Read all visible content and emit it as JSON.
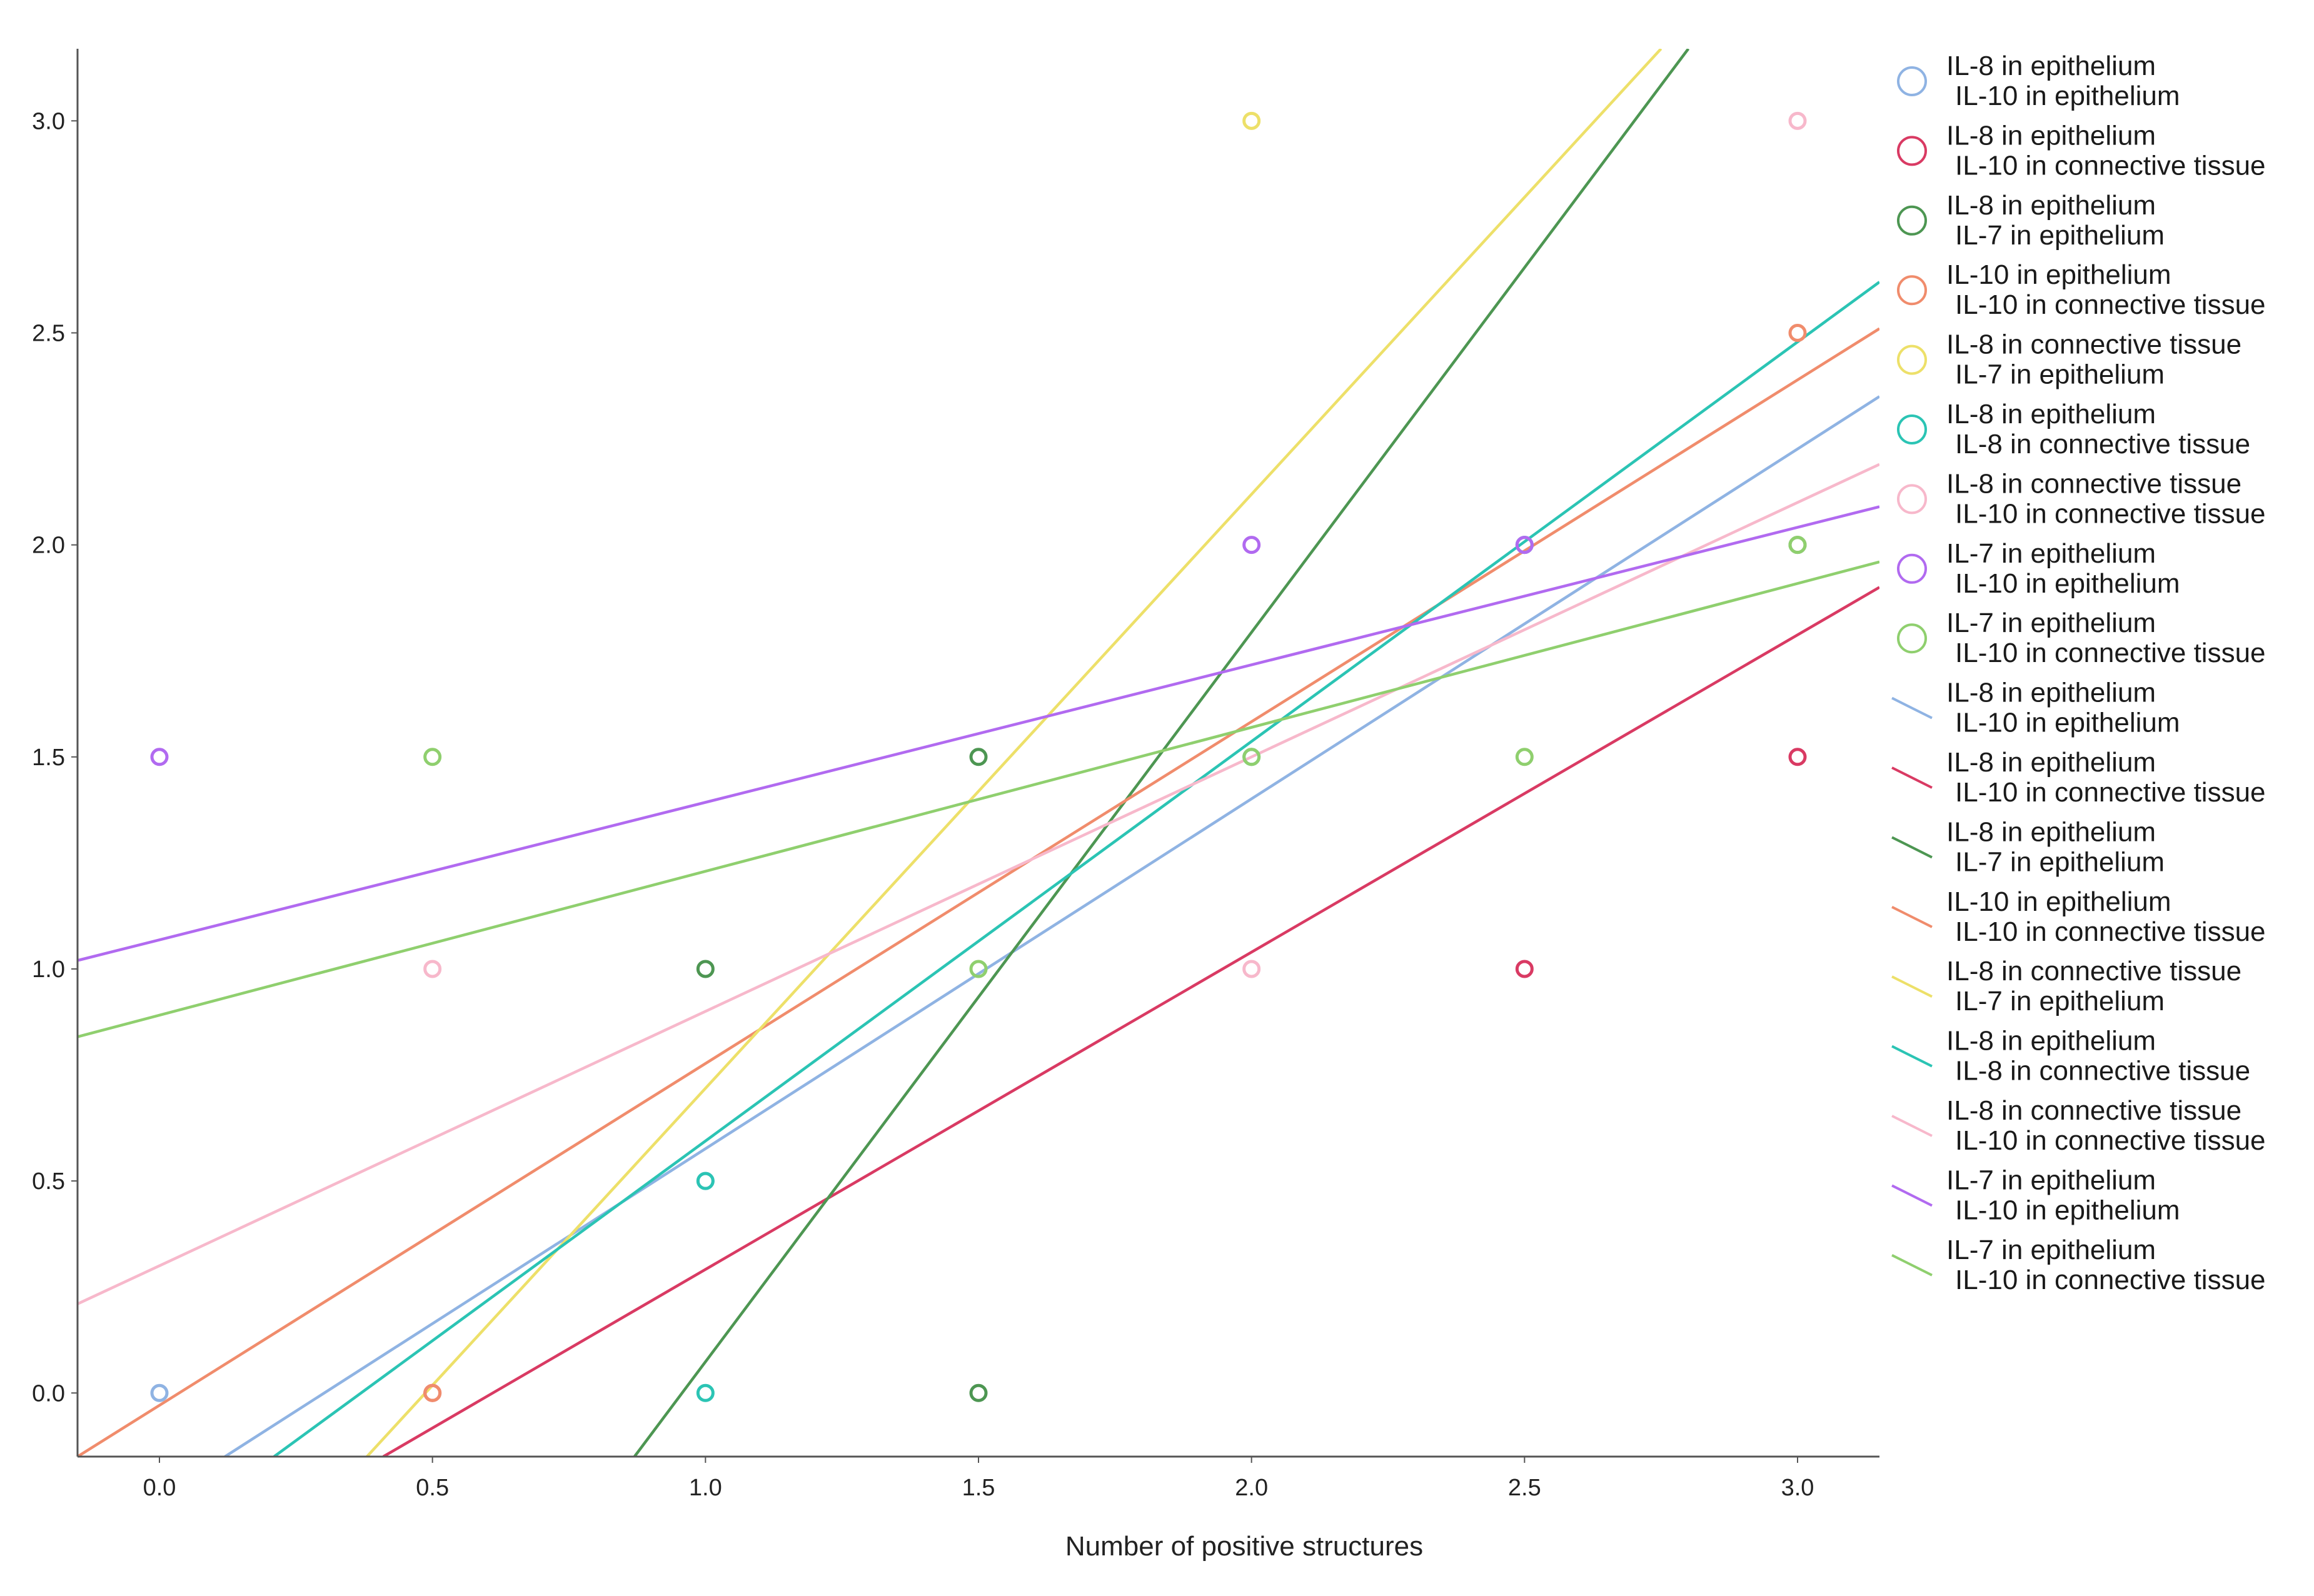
{
  "chart_data": {
    "type": "scatter",
    "title": "",
    "xlabel": "Number of positive structures",
    "ylabel": "",
    "xlim": [
      -0.15,
      3.15
    ],
    "ylim": [
      -0.15,
      3.17
    ],
    "x_ticks": [
      0.0,
      0.5,
      1.0,
      1.5,
      2.0,
      2.5,
      3.0
    ],
    "x_tick_labels": [
      "0.0",
      "0.5",
      "1.0",
      "1.5",
      "2.0",
      "2.5",
      "3.0"
    ],
    "y_ticks": [
      0.0,
      0.5,
      1.0,
      1.5,
      2.0,
      2.5,
      3.0
    ],
    "y_tick_labels": [
      "0.0",
      "0.5",
      "1.0",
      "1.5",
      "2.0",
      "2.5",
      "3.0"
    ],
    "grid": false,
    "legend_position": "right",
    "series": [
      {
        "name_line1": "IL-8 in epithelium",
        "name_line2": "IL-10 in epithelium",
        "color": "#8fb3e3",
        "points": [
          [
            0.0,
            0.0
          ],
          [
            1.0,
            0.5
          ],
          [
            2.5,
            2.0
          ]
        ],
        "fit_line": [
          [
            0.12,
            -0.15
          ],
          [
            3.15,
            2.35
          ]
        ]
      },
      {
        "name_line1": "IL-8 in epithelium",
        "name_line2": "IL-10 in connective tissue",
        "color": "#d93a63",
        "points": [
          [
            0.5,
            0.0
          ],
          [
            2.5,
            1.0
          ],
          [
            3.0,
            1.5
          ]
        ],
        "fit_line": [
          [
            0.41,
            -0.15
          ],
          [
            3.15,
            1.9
          ]
        ]
      },
      {
        "name_line1": "IL-8 in epithelium",
        "name_line2": "IL-7 in epithelium",
        "color": "#4d9652",
        "points": [
          [
            1.0,
            1.0
          ],
          [
            1.5,
            0.0
          ],
          [
            1.5,
            1.5
          ],
          [
            3.0,
            2.0
          ]
        ],
        "fit_line": [
          [
            0.87,
            -0.15
          ],
          [
            2.8,
            3.17
          ]
        ]
      },
      {
        "name_line1": "IL-10 in epithelium",
        "name_line2": "IL-10 in connective tissue",
        "color": "#f08c6c",
        "points": [
          [
            0.5,
            0.0
          ],
          [
            3.0,
            2.5
          ]
        ],
        "fit_line": [
          [
            -0.15,
            -0.15
          ],
          [
            3.15,
            2.51
          ]
        ]
      },
      {
        "name_line1": "IL-8 in connective tissue",
        "name_line2": "IL-7 in epithelium",
        "color": "#ede069",
        "points": [
          [
            2.0,
            3.0
          ]
        ],
        "fit_line": [
          [
            0.38,
            -0.15
          ],
          [
            2.75,
            3.17
          ]
        ]
      },
      {
        "name_line1": "IL-8 in epithelium",
        "name_line2": "IL-8 in connective tissue",
        "color": "#2bc4b4",
        "points": [
          [
            1.0,
            0.0
          ],
          [
            1.0,
            0.5
          ],
          [
            2.0,
            1.5
          ],
          [
            2.5,
            2.0
          ]
        ],
        "fit_line": [
          [
            0.21,
            -0.15
          ],
          [
            3.15,
            2.62
          ]
        ]
      },
      {
        "name_line1": "IL-8 in connective tissue",
        "name_line2": "IL-10 in connective tissue",
        "color": "#f7b8cb",
        "points": [
          [
            0.5,
            1.0
          ],
          [
            2.0,
            1.0
          ],
          [
            3.0,
            3.0
          ]
        ],
        "fit_line": [
          [
            -0.15,
            0.21
          ],
          [
            3.15,
            2.19
          ]
        ]
      },
      {
        "name_line1": "IL-7 in epithelium",
        "name_line2": "IL-10 in epithelium",
        "color": "#b16af0",
        "points": [
          [
            0.0,
            1.5
          ],
          [
            2.0,
            2.0
          ],
          [
            2.5,
            2.0
          ]
        ],
        "fit_line": [
          [
            -0.15,
            1.02
          ],
          [
            3.15,
            2.09
          ]
        ]
      },
      {
        "name_line1": "IL-7 in epithelium",
        "name_line2": "IL-10 in connective tissue",
        "color": "#8fcf6e",
        "points": [
          [
            0.5,
            1.5
          ],
          [
            1.5,
            1.0
          ],
          [
            2.0,
            1.5
          ],
          [
            2.5,
            1.5
          ],
          [
            3.0,
            2.0
          ]
        ],
        "fit_line": [
          [
            -0.15,
            0.84
          ],
          [
            3.15,
            1.96
          ]
        ]
      }
    ]
  }
}
